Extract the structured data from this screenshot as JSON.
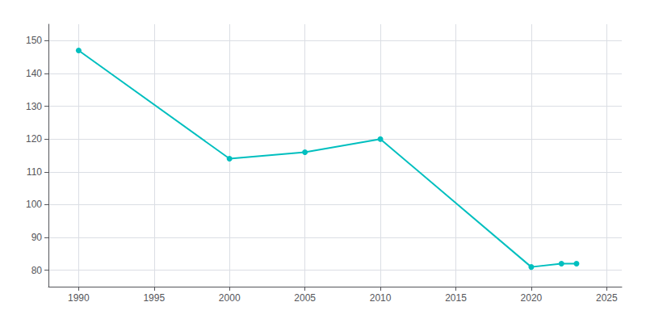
{
  "chart_data": {
    "type": "line",
    "x": [
      1990,
      2000,
      2005,
      2010,
      2020,
      2022,
      2023
    ],
    "values": [
      147,
      114,
      116,
      120,
      81,
      82,
      82
    ],
    "color": "#00BFBF",
    "marker": "o",
    "xlim": [
      1988,
      2026
    ],
    "ylim": [
      75,
      155
    ],
    "xticks": [
      1990,
      1995,
      2000,
      2005,
      2010,
      2015,
      2020,
      2025
    ],
    "yticks": [
      80,
      90,
      100,
      110,
      120,
      130,
      140,
      150
    ],
    "grid": true
  }
}
